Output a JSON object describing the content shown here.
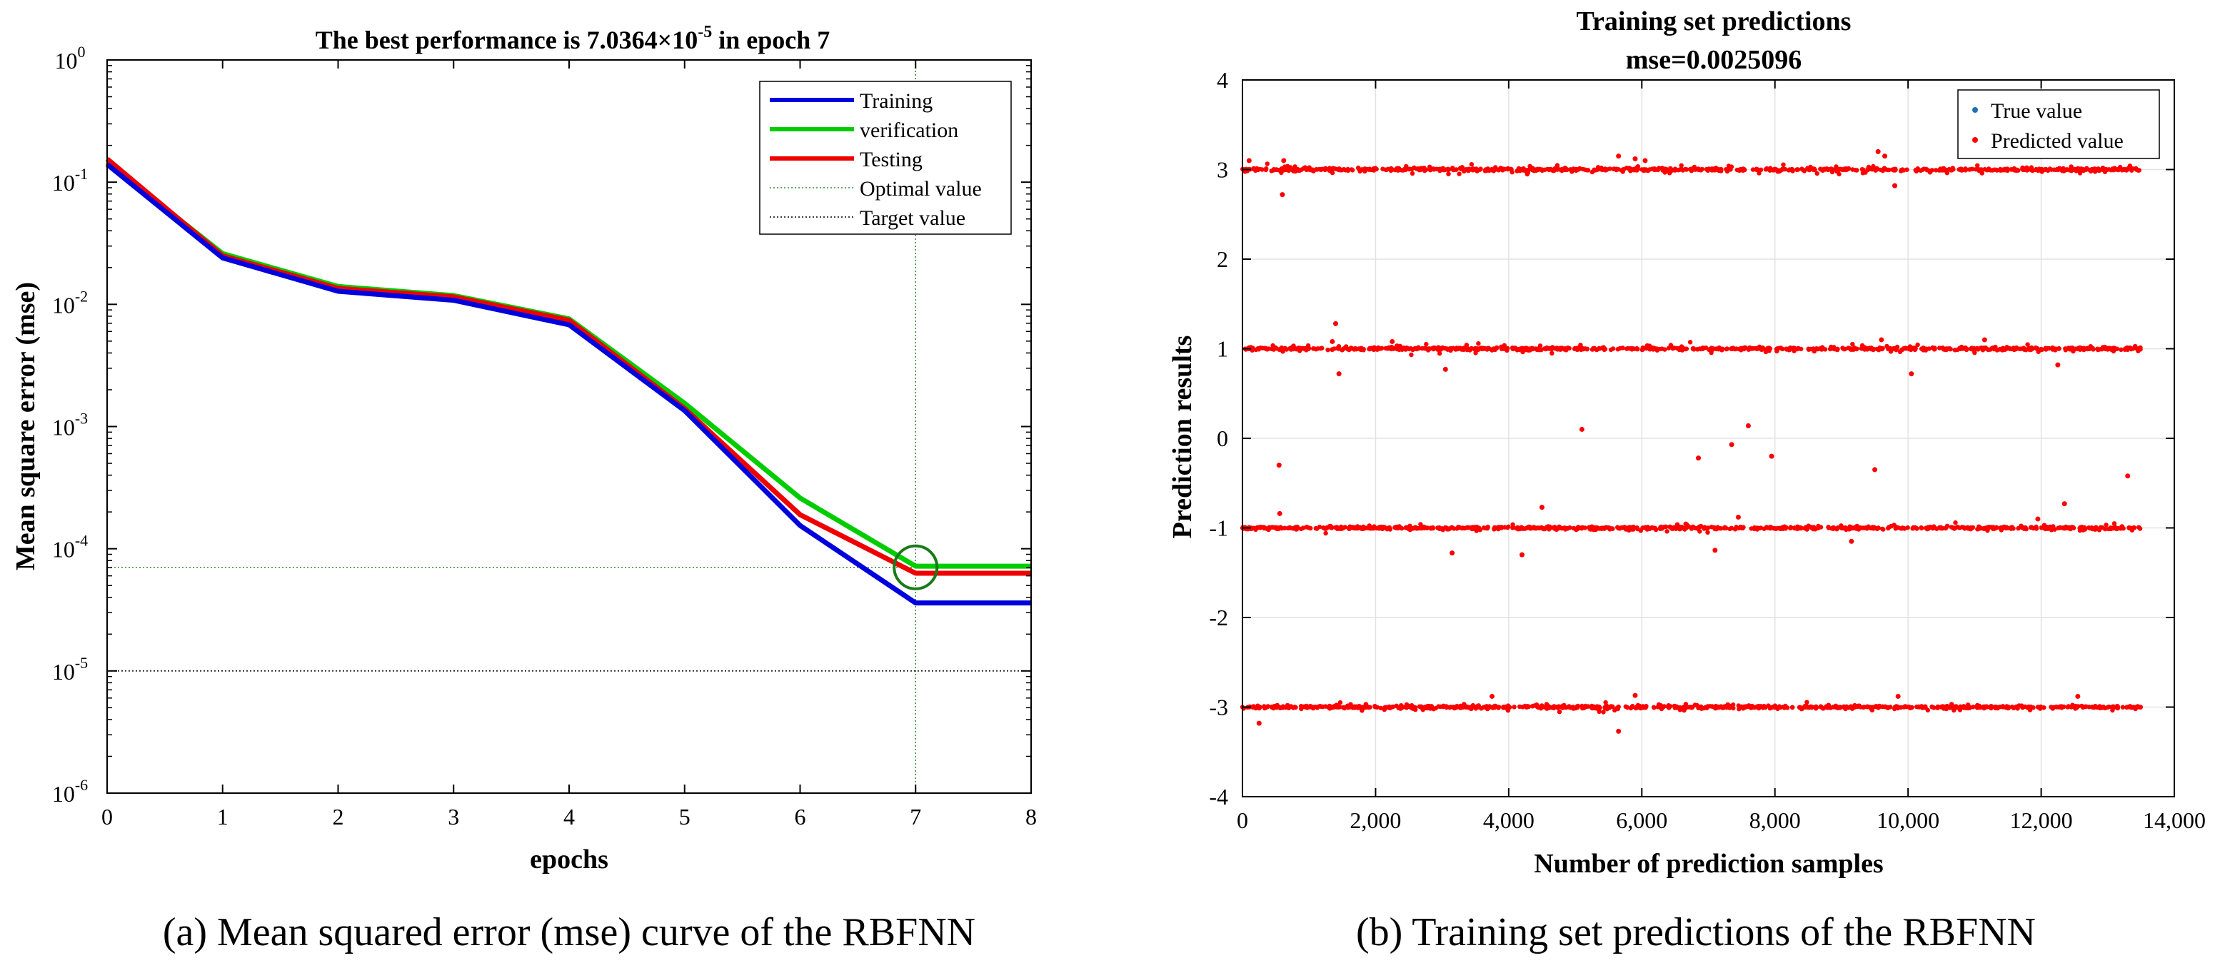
{
  "colors": {
    "training": "#0000dd",
    "verification": "#00cc00",
    "testing": "#ee0000",
    "optimal_line": "#3a8a3a",
    "target_line": "#000000",
    "true_marker": "#1f6fb4",
    "pred_marker": "#ff0000",
    "best_circle": "#1a7a1a"
  },
  "chart_data": [
    {
      "type": "line",
      "title_prefix": "The best performance is 7.0364×10",
      "title_exponent": "-5",
      "title_suffix": " in epoch 7",
      "xlabel": "epochs",
      "ylabel": "Mean square error (mse)",
      "yscale": "log",
      "xlim": [
        0,
        8
      ],
      "ylim": [
        1e-06,
        1
      ],
      "x_ticks": [
        0,
        1,
        2,
        3,
        4,
        5,
        6,
        7,
        8
      ],
      "y_ticks": [
        {
          "value": 1.0,
          "mantissa": "10",
          "exponent": "0"
        },
        {
          "value": 0.1,
          "mantissa": "10",
          "exponent": "-1"
        },
        {
          "value": 0.01,
          "mantissa": "10",
          "exponent": "-2"
        },
        {
          "value": 0.001,
          "mantissa": "10",
          "exponent": "-3"
        },
        {
          "value": 0.0001,
          "mantissa": "10",
          "exponent": "-4"
        },
        {
          "value": 1e-05,
          "mantissa": "10",
          "exponent": "-5"
        },
        {
          "value": 1e-06,
          "mantissa": "10",
          "exponent": "-6"
        }
      ],
      "series": [
        {
          "name": "Training",
          "color_key": "training",
          "x": [
            0,
            1,
            2,
            3,
            4,
            5,
            6,
            7,
            8
          ],
          "values": [
            0.14,
            0.024,
            0.0128,
            0.0108,
            0.0068,
            0.00135,
            0.000155,
            3.6e-05,
            3.6e-05
          ]
        },
        {
          "name": "verification",
          "color_key": "verification",
          "x": [
            0,
            1,
            2,
            3,
            4,
            5,
            6,
            7,
            8
          ],
          "values": [
            0.145,
            0.026,
            0.014,
            0.0118,
            0.0076,
            0.00155,
            0.00026,
            7.2e-05,
            7.2e-05
          ]
        },
        {
          "name": "Testing",
          "color_key": "testing",
          "x": [
            0,
            1,
            2,
            3,
            4,
            5,
            6,
            7,
            8
          ],
          "values": [
            0.155,
            0.025,
            0.0135,
            0.0115,
            0.0074,
            0.0014,
            0.00019,
            6.3e-05,
            6.3e-05
          ]
        }
      ],
      "reference_lines": [
        {
          "name": "Optimal value",
          "horizontal_y": 7.0364e-05,
          "vertical_x": 7
        },
        {
          "name": "Target value",
          "horizontal_y": 1e-05
        }
      ],
      "best_point": {
        "x": 7,
        "y": 7.0364e-05
      },
      "legend": {
        "location": "top-right",
        "entries": [
          "Training",
          "verification",
          "Testing",
          "Optimal value",
          "Target value"
        ]
      },
      "caption": "(a) Mean squared error (mse) curve of the RBFNN"
    },
    {
      "type": "scatter",
      "title": "Training set predictions",
      "subtitle": "mse=0.0025096",
      "xlabel": "Number of prediction samples",
      "ylabel": "Prediction results",
      "xlim": [
        0,
        14000
      ],
      "ylim": [
        -4,
        4
      ],
      "x_ticks": [
        0,
        2000,
        4000,
        6000,
        8000,
        10000,
        12000,
        14000
      ],
      "x_tick_labels": [
        "0",
        "2,000",
        "4,000",
        "6,000",
        "8,000",
        "10,000",
        "12,000",
        "14,000"
      ],
      "y_ticks": [
        -4,
        -3,
        -2,
        -1,
        0,
        1,
        2,
        3,
        4
      ],
      "grid": true,
      "n_samples": 13500,
      "class_levels": [
        3,
        1,
        -1,
        -3
      ],
      "series": [
        {
          "name": "True value",
          "color_key": "true_marker"
        },
        {
          "name": "Predicted value",
          "color_key": "pred_marker"
        }
      ],
      "outliers": [
        {
          "x": 100,
          "y": 3.1
        },
        {
          "x": 600,
          "y": 2.72
        },
        {
          "x": 620,
          "y": 3.1
        },
        {
          "x": 5650,
          "y": 3.15
        },
        {
          "x": 5900,
          "y": 3.12
        },
        {
          "x": 6050,
          "y": 3.1
        },
        {
          "x": 9550,
          "y": 3.2
        },
        {
          "x": 9650,
          "y": 3.15
        },
        {
          "x": 9800,
          "y": 2.82
        },
        {
          "x": 1400,
          "y": 1.28
        },
        {
          "x": 1450,
          "y": 0.72
        },
        {
          "x": 1350,
          "y": 1.08
        },
        {
          "x": 3050,
          "y": 0.77
        },
        {
          "x": 9600,
          "y": 1.1
        },
        {
          "x": 10050,
          "y": 0.72
        },
        {
          "x": 12250,
          "y": 0.82
        },
        {
          "x": 11150,
          "y": 1.1
        },
        {
          "x": 2250,
          "y": 1.08
        },
        {
          "x": 550,
          "y": -0.3
        },
        {
          "x": 560,
          "y": -0.84
        },
        {
          "x": 5100,
          "y": 0.1
        },
        {
          "x": 6850,
          "y": -0.22
        },
        {
          "x": 7350,
          "y": -0.07
        },
        {
          "x": 7600,
          "y": 0.14
        },
        {
          "x": 7950,
          "y": -0.2
        },
        {
          "x": 9500,
          "y": -0.35
        },
        {
          "x": 13300,
          "y": -0.42
        },
        {
          "x": 4500,
          "y": -0.77
        },
        {
          "x": 4200,
          "y": -1.3
        },
        {
          "x": 3150,
          "y": -1.28
        },
        {
          "x": 7100,
          "y": -1.25
        },
        {
          "x": 7450,
          "y": -0.88
        },
        {
          "x": 11950,
          "y": -0.9
        },
        {
          "x": 12350,
          "y": -0.73
        },
        {
          "x": 9150,
          "y": -1.15
        },
        {
          "x": 250,
          "y": -3.18
        },
        {
          "x": 3750,
          "y": -2.88
        },
        {
          "x": 5650,
          "y": -3.27
        },
        {
          "x": 5900,
          "y": -2.87
        },
        {
          "x": 9850,
          "y": -2.88
        },
        {
          "x": 12550,
          "y": -2.88
        }
      ],
      "legend": {
        "location": "top-right",
        "entries": [
          "True value",
          "Predicted value"
        ]
      },
      "caption": "(b) Training set predictions of the RBFNN"
    }
  ]
}
